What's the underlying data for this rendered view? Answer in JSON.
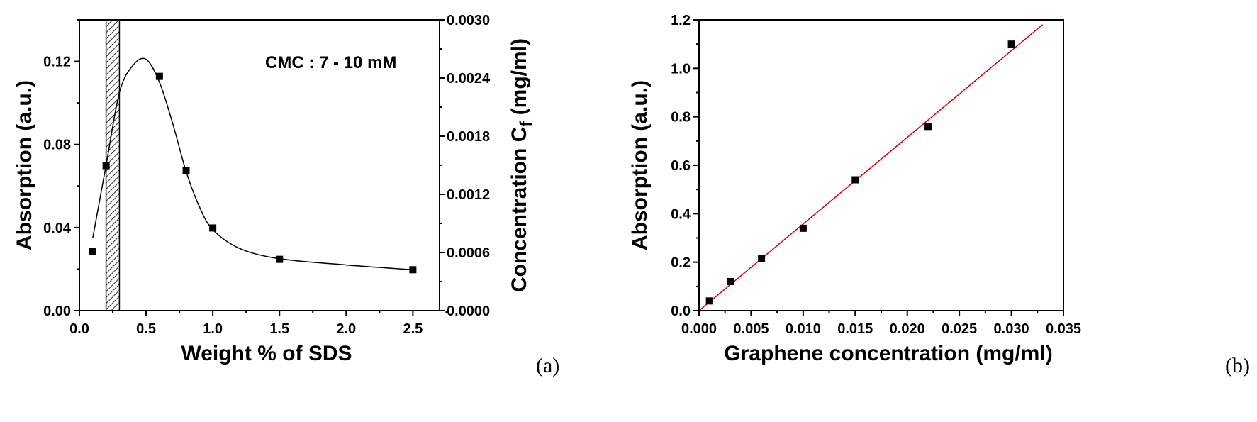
{
  "chart_data": [
    {
      "type": "scatter",
      "panel_label": "(a)",
      "xlabel": "Weight % of SDS",
      "ylabel": "Absorption (a.u.)",
      "y2label": "Concentration C",
      "y2label_sub": "f",
      "y2label_unit": " (mg/ml)",
      "annotation": "CMC : 7 - 10 mM",
      "xlim": [
        0.0,
        2.7
      ],
      "ylim": [
        0.0,
        0.14
      ],
      "y2lim": [
        0.0,
        0.003
      ],
      "xticks": [
        "0.0",
        "0.5",
        "1.0",
        "1.5",
        "2.0",
        "2.5"
      ],
      "yticks": [
        "0.00",
        "0.04",
        "0.08",
        "0.12"
      ],
      "y2ticks": [
        "0.0000",
        "0.0006",
        "0.0012",
        "0.0018",
        "0.0024",
        "0.0030"
      ],
      "shaded_band_x": [
        0.2,
        0.3
      ],
      "points": {
        "x": [
          0.1,
          0.2,
          0.6,
          0.8,
          1.0,
          1.5,
          2.5
        ],
        "y": [
          0.0285,
          0.0698,
          0.1128,
          0.0676,
          0.0398,
          0.0247,
          0.0197
        ]
      },
      "curve": {
        "x": [
          0.1,
          0.2,
          0.3,
          0.4,
          0.5,
          0.6,
          0.7,
          0.8,
          0.9,
          1.0,
          1.2,
          1.5,
          2.0,
          2.5
        ],
        "y": [
          0.035,
          0.07,
          0.105,
          0.118,
          0.121,
          0.11,
          0.09,
          0.067,
          0.05,
          0.039,
          0.03,
          0.025,
          0.022,
          0.0197
        ]
      }
    },
    {
      "type": "scatter",
      "panel_label": "(b)",
      "xlabel": "Graphene concentration (mg/ml)",
      "ylabel": "Absorption (a.u.)",
      "xlim": [
        0.0,
        0.035
      ],
      "ylim": [
        0.0,
        1.2
      ],
      "xticks": [
        "0.000",
        "0.005",
        "0.010",
        "0.015",
        "0.020",
        "0.025",
        "0.030",
        "0.035"
      ],
      "yticks": [
        "0.0",
        "0.2",
        "0.4",
        "0.6",
        "0.8",
        "1.0",
        "1.2"
      ],
      "points": {
        "x": [
          0.001,
          0.003,
          0.006,
          0.01,
          0.015,
          0.022,
          0.03
        ],
        "y": [
          0.04,
          0.12,
          0.215,
          0.34,
          0.54,
          0.76,
          1.1
        ]
      },
      "fit_line": {
        "x": [
          0.0,
          0.033
        ],
        "y": [
          0.0,
          1.18
        ],
        "color": "#cc0000"
      }
    }
  ]
}
